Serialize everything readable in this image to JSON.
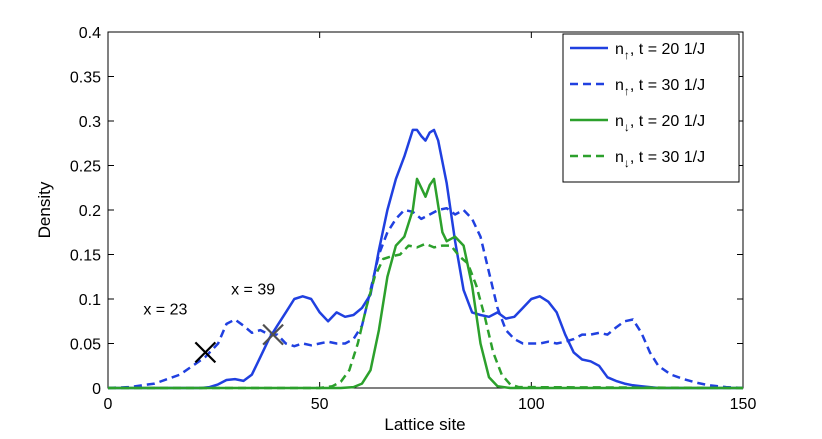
{
  "chart_data": {
    "type": "line",
    "xlabel": "Lattice site",
    "ylabel": "Density",
    "xlim": [
      0,
      150
    ],
    "ylim": [
      0,
      0.4
    ],
    "xticks": [
      0,
      50,
      100,
      150
    ],
    "yticks": [
      0,
      0.05,
      0.1,
      0.15,
      0.2,
      0.25,
      0.3,
      0.35,
      0.4
    ],
    "xtick_labels": [
      "0",
      "50",
      "100",
      "150"
    ],
    "ytick_labels": [
      "0",
      "0.05",
      "0.1",
      "0.15",
      "0.2",
      "0.25",
      "0.3",
      "0.35",
      "0.4"
    ],
    "grid": false,
    "legend_position": "top-right",
    "series": [
      {
        "name": "n↑, t = 20 1/J",
        "label_base": "n",
        "label_sub": "↑",
        "label_rest": ", t = 20 1/J",
        "color": "#2040e0",
        "style": "solid",
        "x": [
          0,
          22,
          24,
          26,
          28,
          30,
          32,
          34,
          36,
          38,
          40,
          42,
          44,
          46,
          48,
          50,
          52,
          54,
          56,
          58,
          60,
          62,
          64,
          66,
          68,
          70,
          72,
          73,
          74,
          75,
          76,
          77,
          78,
          80,
          82,
          84,
          86,
          88,
          90,
          92,
          94,
          96,
          98,
          100,
          102,
          104,
          106,
          108,
          110,
          112,
          114,
          116,
          118,
          120,
          122,
          124,
          126,
          128,
          130,
          150
        ],
        "y": [
          0,
          0,
          0.001,
          0.004,
          0.009,
          0.01,
          0.008,
          0.015,
          0.035,
          0.055,
          0.07,
          0.085,
          0.1,
          0.103,
          0.1,
          0.085,
          0.075,
          0.085,
          0.08,
          0.082,
          0.09,
          0.105,
          0.155,
          0.2,
          0.235,
          0.26,
          0.29,
          0.29,
          0.283,
          0.278,
          0.287,
          0.29,
          0.278,
          0.23,
          0.165,
          0.11,
          0.085,
          0.082,
          0.08,
          0.085,
          0.078,
          0.08,
          0.09,
          0.1,
          0.103,
          0.097,
          0.085,
          0.06,
          0.04,
          0.032,
          0.03,
          0.025,
          0.012,
          0.008,
          0.005,
          0.003,
          0.002,
          0.001,
          0,
          0
        ]
      },
      {
        "name": "n↑, t = 30 1/J",
        "label_base": "n",
        "label_sub": "↑",
        "label_rest": ", t = 30 1/J",
        "color": "#2040e0",
        "style": "dashed",
        "x": [
          0,
          5,
          8,
          11,
          14,
          17,
          20,
          23,
          26,
          28,
          30,
          32,
          34,
          36,
          38,
          40,
          42,
          44,
          46,
          48,
          50,
          52,
          54,
          56,
          58,
          60,
          62,
          64,
          66,
          68,
          70,
          72,
          74,
          76,
          78,
          80,
          82,
          84,
          86,
          88,
          90,
          92,
          94,
          96,
          98,
          100,
          102,
          104,
          106,
          108,
          110,
          112,
          114,
          116,
          118,
          120,
          122,
          124,
          126,
          128,
          130,
          133,
          136,
          139,
          142,
          146,
          150
        ],
        "y": [
          0,
          0.001,
          0.003,
          0.005,
          0.01,
          0.015,
          0.025,
          0.035,
          0.05,
          0.072,
          0.077,
          0.07,
          0.062,
          0.065,
          0.06,
          0.06,
          0.05,
          0.047,
          0.05,
          0.048,
          0.05,
          0.052,
          0.05,
          0.05,
          0.055,
          0.07,
          0.11,
          0.15,
          0.175,
          0.19,
          0.2,
          0.198,
          0.19,
          0.195,
          0.2,
          0.202,
          0.195,
          0.2,
          0.19,
          0.17,
          0.13,
          0.09,
          0.065,
          0.055,
          0.05,
          0.05,
          0.05,
          0.052,
          0.05,
          0.052,
          0.055,
          0.06,
          0.06,
          0.062,
          0.06,
          0.068,
          0.075,
          0.077,
          0.062,
          0.04,
          0.025,
          0.015,
          0.01,
          0.006,
          0.003,
          0.001,
          0
        ]
      },
      {
        "name": "n↓, t = 20 1/J",
        "label_base": "n",
        "label_sub": "↓",
        "label_rest": ", t = 20 1/J",
        "color": "#2ca02c",
        "style": "solid",
        "x": [
          0,
          55,
          58,
          60,
          62,
          64,
          66,
          68,
          70,
          72,
          73,
          74,
          75,
          76,
          77,
          78,
          79,
          80,
          82,
          84,
          86,
          88,
          90,
          92,
          95,
          150
        ],
        "y": [
          0,
          0,
          0.001,
          0.005,
          0.02,
          0.065,
          0.125,
          0.16,
          0.17,
          0.2,
          0.235,
          0.225,
          0.215,
          0.228,
          0.235,
          0.205,
          0.175,
          0.165,
          0.17,
          0.16,
          0.115,
          0.05,
          0.012,
          0.002,
          0,
          0
        ]
      },
      {
        "name": "n↓, t = 30 1/J",
        "label_base": "n",
        "label_sub": "↓",
        "label_rest": ", t = 30 1/J",
        "color": "#2ca02c",
        "style": "dashed",
        "x": [
          0,
          50,
          53,
          55,
          57,
          59,
          61,
          63,
          65,
          67,
          69,
          71,
          73,
          75,
          77,
          79,
          81,
          83,
          85,
          87,
          89,
          91,
          93,
          95,
          97,
          150
        ],
        "y": [
          0,
          0,
          0.002,
          0.007,
          0.02,
          0.05,
          0.09,
          0.125,
          0.145,
          0.148,
          0.15,
          0.16,
          0.158,
          0.162,
          0.158,
          0.16,
          0.16,
          0.148,
          0.14,
          0.115,
          0.08,
          0.04,
          0.015,
          0.004,
          0.001,
          0
        ]
      }
    ],
    "markers": [
      {
        "label": "x = 23",
        "x": 23,
        "y": 0.04,
        "color": "#000000"
      },
      {
        "label": "x = 39",
        "x": 39,
        "y": 0.06,
        "color": "#505050"
      }
    ]
  }
}
